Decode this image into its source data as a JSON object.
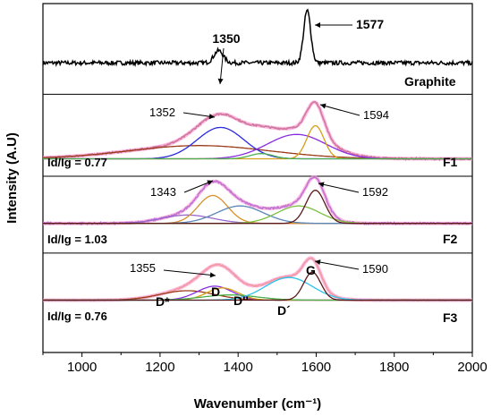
{
  "chart_data": {
    "type": "line",
    "xlabel": "Wavenumber (cm⁻¹)",
    "ylabel": "Intensity (A.U)",
    "xlim": [
      900,
      2000
    ],
    "xticks": [
      "1000",
      "1200",
      "1400",
      "1600",
      "1800",
      "2000"
    ],
    "xtick_values": [
      1000,
      1200,
      1400,
      1600,
      1800,
      2000
    ],
    "grid": false,
    "colors": {
      "experimental": "#000000",
      "F1_data": "#5c2e1a",
      "F2_data": "#2222cc",
      "F3_data": "#c8a020",
      "envelope": "#ff9ad5",
      "D_band": "#2b2bdd",
      "G_band": "#d4a017",
      "D_star": "#9a3b1a",
      "D_double_prime": "#8a2be2",
      "D_prime": "#2ec3e8",
      "extra": "#4caf50",
      "G_dark": "#5a1a1a",
      "fit_orange": "#d98f2a",
      "fit_blue2": "#5a86b8",
      "fit_violet": "#9966cc",
      "fit_green": "#7cc040"
    },
    "series": [
      {
        "name": "Graphite",
        "baseline": 0.83,
        "noise": 0.012,
        "peaks": [
          {
            "center": 1350,
            "amp": 0.035,
            "width": 12
          },
          {
            "center": 1577,
            "amp": 0.15,
            "width": 9
          }
        ],
        "annotations": [
          "1350",
          "1577"
        ]
      },
      {
        "name": "F1",
        "ratio_label": "Id/Ig = 0.77",
        "baseline": 0.555,
        "noise": 0.005,
        "components": [
          {
            "role": "D_star",
            "center": 1300,
            "amp": 0.038,
            "width": 180
          },
          {
            "role": "D_band",
            "center": 1355,
            "amp": 0.09,
            "width": 60
          },
          {
            "role": "D_double_prime",
            "center": 1550,
            "amp": 0.07,
            "width": 75
          },
          {
            "role": "G_band",
            "center": 1598,
            "amp": 0.095,
            "width": 22
          },
          {
            "role": "extra",
            "center": 1460,
            "amp": 0.015,
            "width": 30
          }
        ],
        "annotations": [
          "1352",
          "1594"
        ]
      },
      {
        "name": "F2",
        "ratio_label": "Id/Ig = 1.03",
        "baseline": 0.37,
        "noise": 0.005,
        "components": [
          {
            "role": "fit_violet",
            "center": 1270,
            "amp": 0.024,
            "width": 65
          },
          {
            "role": "fit_orange",
            "center": 1335,
            "amp": 0.08,
            "width": 38
          },
          {
            "role": "fit_blue2",
            "center": 1405,
            "amp": 0.05,
            "width": 60
          },
          {
            "role": "fit_green",
            "center": 1555,
            "amp": 0.05,
            "width": 55
          },
          {
            "role": "G_dark",
            "center": 1598,
            "amp": 0.095,
            "width": 24
          }
        ],
        "annotations": [
          "1343",
          "1592"
        ]
      },
      {
        "name": "F3",
        "ratio_label": "Id/Ig = 0.76",
        "baseline": 0.15,
        "noise": 0.004,
        "components": [
          {
            "role": "D_star",
            "center": 1270,
            "amp": 0.027,
            "width": 70
          },
          {
            "role": "D_double_prime",
            "center": 1340,
            "amp": 0.04,
            "width": 45
          },
          {
            "role": "G_band",
            "center": 1360,
            "amp": 0.035,
            "width": 40
          },
          {
            "role": "extra",
            "center": 1380,
            "amp": 0.015,
            "width": 70
          },
          {
            "role": "D_prime",
            "center": 1530,
            "amp": 0.065,
            "width": 60
          },
          {
            "role": "G_dark",
            "center": 1590,
            "amp": 0.08,
            "width": 22
          }
        ],
        "annotations": [
          "1355",
          "1590"
        ],
        "band_labels": [
          "D*",
          "D",
          "D''",
          "D´",
          "G"
        ]
      }
    ]
  }
}
